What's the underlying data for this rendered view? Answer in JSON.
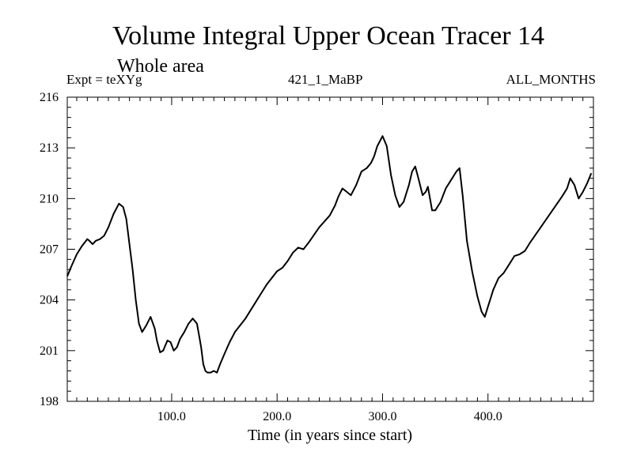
{
  "header": {
    "title": "Volume Integral Upper Ocean Tracer 14",
    "subtitle": "Whole area",
    "left_label": "Expt = teXYg",
    "center_label": "421_1_MaBP",
    "right_label": "ALL_MONTHS"
  },
  "chart_data": {
    "type": "line",
    "title": "Volume Integral Upper Ocean Tracer 14",
    "subtitle": "Whole area",
    "xlabel": "Time (in years since start)",
    "ylabel": "",
    "xlim": [
      1,
      500
    ],
    "ylim": [
      198,
      216
    ],
    "x_ticks": [
      100,
      200,
      300,
      400
    ],
    "x_tick_labels": [
      "100.0",
      "200.0",
      "300.0",
      "400.0"
    ],
    "y_ticks": [
      198,
      201,
      204,
      207,
      210,
      213,
      216
    ],
    "y_tick_labels": [
      "198",
      "201",
      "204",
      "207",
      "210",
      "213",
      "216"
    ],
    "grid": false,
    "series": [
      {
        "color": "#000000",
        "x": [
          1,
          5,
          10,
          15,
          20,
          22,
          25,
          28,
          32,
          36,
          40,
          45,
          50,
          54,
          57,
          60,
          63,
          66,
          69,
          72,
          76,
          80,
          84,
          86,
          89,
          92,
          94,
          96,
          99,
          102,
          105,
          108,
          112,
          116,
          120,
          124,
          126,
          128,
          130,
          132,
          134,
          137,
          140,
          143,
          146,
          150,
          155,
          160,
          170,
          180,
          190,
          200,
          205,
          210,
          215,
          220,
          225,
          230,
          240,
          250,
          255,
          258,
          262,
          270,
          275,
          280,
          285,
          289,
          292,
          295,
          300,
          304,
          308,
          312,
          316,
          320,
          325,
          328,
          331,
          334,
          338,
          341,
          343,
          347,
          350,
          355,
          360,
          365,
          370,
          373,
          376,
          380,
          385,
          390,
          394,
          397,
          400,
          405,
          410,
          415,
          420,
          425,
          430,
          435,
          440,
          450,
          460,
          470,
          475,
          478,
          482,
          486,
          490,
          494,
          498
        ],
        "y": [
          205.4,
          206.0,
          206.7,
          207.2,
          207.6,
          207.5,
          207.3,
          207.5,
          207.6,
          207.8,
          208.3,
          209.1,
          209.7,
          209.5,
          208.8,
          207.3,
          205.8,
          204.0,
          202.6,
          202.1,
          202.5,
          203.0,
          202.3,
          201.6,
          200.9,
          201.0,
          201.3,
          201.6,
          201.5,
          201.0,
          201.2,
          201.7,
          202.1,
          202.6,
          202.9,
          202.6,
          201.9,
          201.2,
          200.2,
          199.8,
          199.7,
          199.7,
          199.8,
          199.7,
          200.2,
          200.8,
          201.5,
          202.1,
          202.9,
          203.9,
          204.9,
          205.7,
          205.9,
          206.3,
          206.8,
          207.1,
          207.0,
          207.4,
          208.3,
          209.0,
          209.6,
          210.1,
          210.6,
          210.2,
          210.8,
          211.6,
          211.8,
          212.1,
          212.5,
          213.1,
          213.7,
          213.1,
          211.4,
          210.2,
          209.5,
          209.8,
          210.8,
          211.6,
          211.9,
          211.2,
          210.2,
          210.4,
          210.7,
          209.3,
          209.3,
          209.8,
          210.6,
          211.1,
          211.6,
          211.8,
          210.2,
          207.5,
          205.7,
          204.2,
          203.3,
          203.0,
          203.6,
          204.6,
          205.3,
          205.6,
          206.1,
          206.6,
          206.7,
          206.9,
          207.4,
          208.3,
          209.2,
          210.1,
          210.6,
          211.2,
          210.8,
          210.0,
          210.4,
          210.9,
          211.5
        ]
      }
    ]
  }
}
